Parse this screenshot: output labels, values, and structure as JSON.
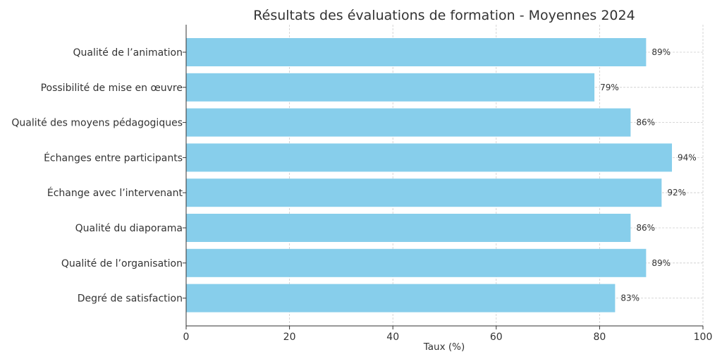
{
  "chart_data": {
    "type": "bar",
    "orientation": "horizontal",
    "title": "Résultats des évaluations de formation - Moyennes 2024",
    "xlabel": "Taux (%)",
    "ylabel": "",
    "xlim": [
      0,
      100
    ],
    "xticks": [
      0,
      20,
      40,
      60,
      80,
      100
    ],
    "grid": true,
    "value_suffix": "%",
    "bar_color": "#87ceeb",
    "categories": [
      "Qualité de l’animation",
      "Possibilité de mise en œuvre",
      "Qualité des moyens pédagogiques",
      "Échanges entre participants",
      "Échange avec l’intervenant",
      "Qualité du diaporama",
      "Qualité de l’organisation",
      "Degré de satisfaction"
    ],
    "values": [
      89,
      79,
      86,
      94,
      92,
      86,
      89,
      83
    ]
  }
}
